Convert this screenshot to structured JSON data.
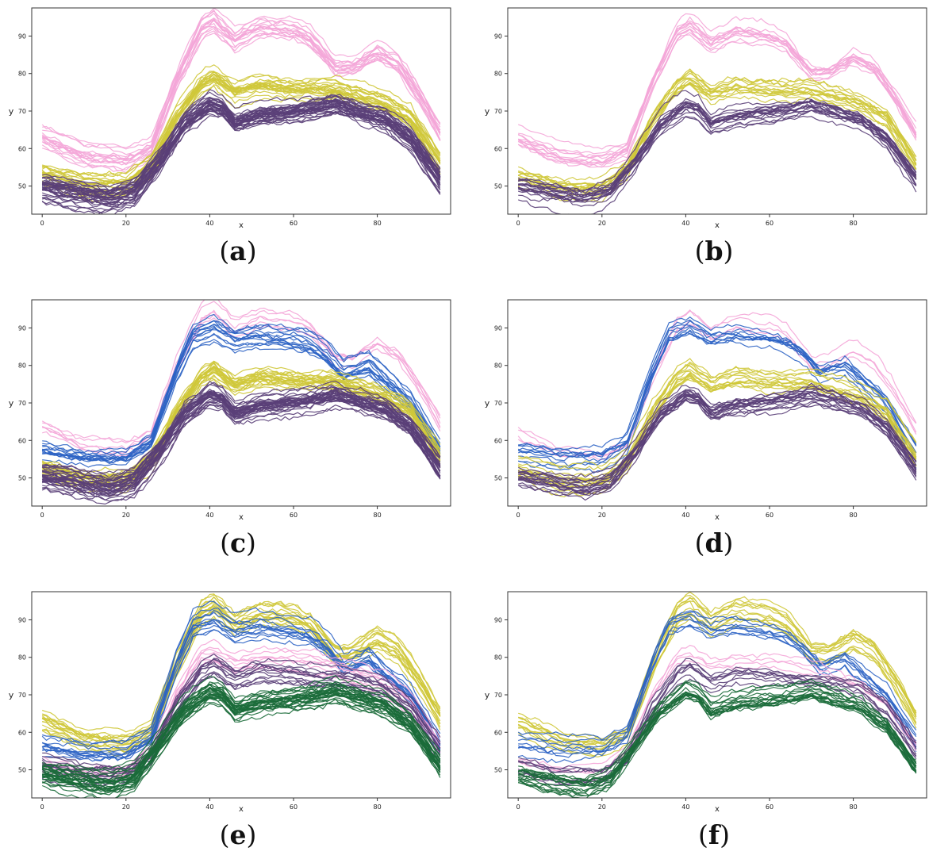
{
  "colors": {
    "pink": "#f4a6d8",
    "yellow": "#cfc83a",
    "purple": "#5a3f78",
    "blue": "#2c63c4",
    "green": "#1b6b3a",
    "axis": "#333333"
  },
  "chart_data": [
    {
      "type": "line",
      "panel": "a",
      "label": "a",
      "xlabel": "x",
      "ylabel": "y",
      "xlim": [
        -2.5,
        97.5
      ],
      "ylim": [
        42.5,
        97.5
      ],
      "xticks": [
        0,
        20,
        40,
        60,
        80
      ],
      "yticks": [
        50,
        60,
        70,
        80,
        90
      ],
      "groups": [
        {
          "color": "pink",
          "count": 16
        },
        {
          "color": "yellow",
          "count": 22
        },
        {
          "color": "purple",
          "count": 36
        }
      ]
    },
    {
      "type": "line",
      "panel": "b",
      "label": "b",
      "xlabel": "x",
      "ylabel": "y",
      "xlim": [
        -2.5,
        97.5
      ],
      "ylim": [
        42.5,
        97.5
      ],
      "xticks": [
        0,
        20,
        40,
        60,
        80
      ],
      "yticks": [
        50,
        60,
        70,
        80,
        90
      ],
      "groups": [
        {
          "color": "pink",
          "count": 12
        },
        {
          "color": "yellow",
          "count": 14
        },
        {
          "color": "purple",
          "count": 18
        }
      ]
    },
    {
      "type": "line",
      "panel": "c",
      "label": "c",
      "xlabel": "x",
      "ylabel": "y",
      "xlim": [
        -2.5,
        97.5
      ],
      "ylim": [
        42.5,
        97.5
      ],
      "xticks": [
        0,
        20,
        40,
        60,
        80
      ],
      "yticks": [
        50,
        60,
        70,
        80,
        90
      ],
      "groups": [
        {
          "color": "pink",
          "count": 6
        },
        {
          "color": "blue",
          "count": 14
        },
        {
          "color": "yellow",
          "count": 22
        },
        {
          "color": "purple",
          "count": 34
        }
      ]
    },
    {
      "type": "line",
      "panel": "d",
      "label": "d",
      "xlabel": "x",
      "ylabel": "y",
      "xlim": [
        -2.5,
        97.5
      ],
      "ylim": [
        42.5,
        97.5
      ],
      "xticks": [
        0,
        20,
        40,
        60,
        80
      ],
      "yticks": [
        50,
        60,
        70,
        80,
        90
      ],
      "groups": [
        {
          "color": "pink",
          "count": 4
        },
        {
          "color": "blue",
          "count": 10
        },
        {
          "color": "yellow",
          "count": 14
        },
        {
          "color": "purple",
          "count": 18
        }
      ]
    },
    {
      "type": "line",
      "panel": "e",
      "label": "e",
      "xlabel": "x",
      "ylabel": "y",
      "xlim": [
        -2.5,
        97.5
      ],
      "ylim": [
        42.5,
        97.5
      ],
      "xticks": [
        0,
        20,
        40,
        60,
        80
      ],
      "yticks": [
        50,
        60,
        70,
        80,
        90
      ],
      "groups": [
        {
          "color": "yellow",
          "count": 16
        },
        {
          "color": "blue",
          "count": 12
        },
        {
          "color": "pink",
          "count": 8
        },
        {
          "color": "purple",
          "count": 12
        },
        {
          "color": "green",
          "count": 30
        }
      ]
    },
    {
      "type": "line",
      "panel": "f",
      "label": "f",
      "xlabel": "x",
      "ylabel": "y",
      "xlim": [
        -2.5,
        97.5
      ],
      "ylim": [
        42.5,
        97.5
      ],
      "xticks": [
        0,
        20,
        40,
        60,
        80
      ],
      "yticks": [
        50,
        60,
        70,
        80,
        90
      ],
      "groups": [
        {
          "color": "yellow",
          "count": 12
        },
        {
          "color": "blue",
          "count": 8
        },
        {
          "color": "pink",
          "count": 4
        },
        {
          "color": "purple",
          "count": 8
        },
        {
          "color": "green",
          "count": 18
        }
      ]
    }
  ]
}
